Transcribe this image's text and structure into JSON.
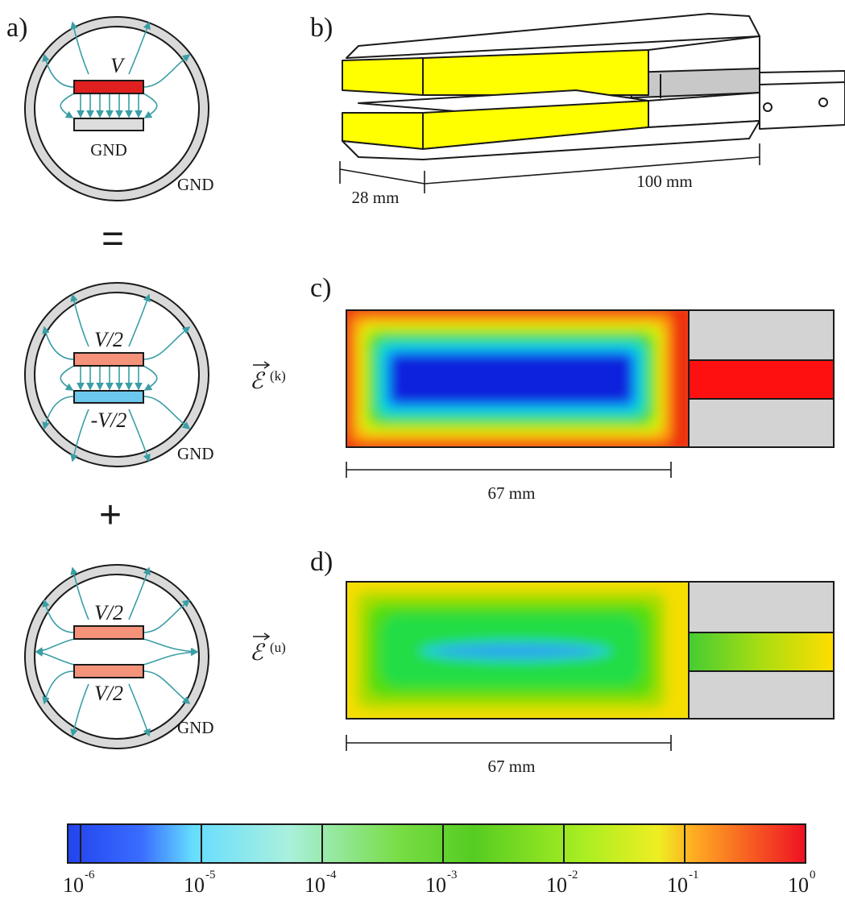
{
  "panels": {
    "a": "a)",
    "b": "b)",
    "c": "c)",
    "d": "d)"
  },
  "panel_a": {
    "top": {
      "plate_label": "V",
      "ground_plate": "GND",
      "shield": "GND"
    },
    "equals": "=",
    "middle": {
      "upper_plate": "V/2",
      "lower_plate": "-V/2",
      "shield": "GND"
    },
    "plus": "+",
    "bottom": {
      "upper_plate": "V/2",
      "lower_plate": "V/2",
      "shield": "GND"
    }
  },
  "panel_b": {
    "width_dimension": "28 mm",
    "length_dimension": "100 mm"
  },
  "panel_c": {
    "field_symbol": "ℰ",
    "field_superscript": "(k)",
    "scale_bar": "67 mm"
  },
  "panel_d": {
    "field_symbol": "ℰ",
    "field_superscript": "(u)",
    "scale_bar": "67 mm"
  },
  "colorbar": {
    "labels": [
      {
        "base": "10",
        "exponent": "-6"
      },
      {
        "base": "10",
        "exponent": "-5"
      },
      {
        "base": "10",
        "exponent": "-4"
      },
      {
        "base": "10",
        "exponent": "-3"
      },
      {
        "base": "10",
        "exponent": "-2"
      },
      {
        "base": "10",
        "exponent": "-1"
      },
      {
        "base": "10",
        "exponent": "0"
      }
    ]
  }
}
